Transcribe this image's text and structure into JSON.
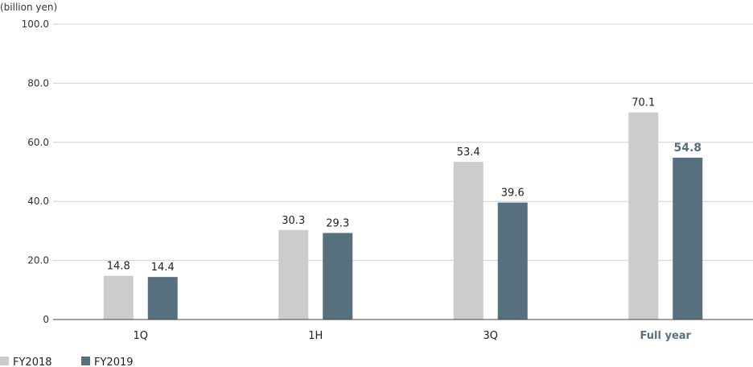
{
  "chart_data": {
    "type": "bar",
    "unit_label": "(billion yen)",
    "categories": [
      "1Q",
      "1H",
      "3Q",
      "Full year"
    ],
    "highlight_category": "Full year",
    "series": [
      {
        "name": "FY2018",
        "color": "#cccccc",
        "values": [
          14.8,
          30.3,
          53.4,
          70.1
        ],
        "labels": [
          "14.8",
          "30.3",
          "53.4",
          "70.1"
        ]
      },
      {
        "name": "FY2019",
        "color": "#57707e",
        "values": [
          14.4,
          29.3,
          39.6,
          54.8
        ],
        "labels": [
          "14.4",
          "29.3",
          "39.6",
          "54.8"
        ]
      }
    ],
    "ylim": [
      0,
      100
    ],
    "yticks": [
      0,
      20,
      40,
      60,
      80,
      100
    ],
    "ytick_labels": [
      "0",
      "20.0",
      "40.0",
      "60.0",
      "80.0",
      "100.0"
    ],
    "grid": true,
    "legend_position": "bottom-left"
  }
}
